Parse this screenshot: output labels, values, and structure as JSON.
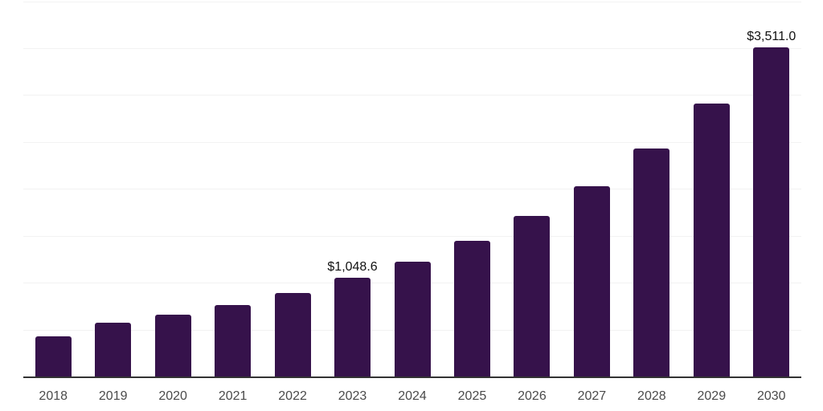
{
  "chart_data": {
    "type": "bar",
    "title": "",
    "xlabel": "",
    "ylabel": "",
    "categories": [
      "2018",
      "2019",
      "2020",
      "2021",
      "2022",
      "2023",
      "2024",
      "2025",
      "2026",
      "2027",
      "2028",
      "2029",
      "2030"
    ],
    "values": [
      425,
      575,
      655,
      765,
      890,
      1048.6,
      1220,
      1445,
      1710,
      2030,
      2430,
      2910,
      3511
    ],
    "value_labels": {
      "2023": "$1,048.6",
      "2030": "$3,511.0"
    },
    "ylim": [
      0,
      4000
    ],
    "gridline_interval": 500,
    "grid": "horizontal",
    "legend": "none",
    "y_axis_tick_labels": "none",
    "colors": {
      "bar": "#36124b",
      "value_label": "#111111",
      "x_tick_label": "#4a4a4a",
      "gridline": "#f2f2f2",
      "axis_line": "#333333",
      "background": "#ffffff"
    }
  }
}
